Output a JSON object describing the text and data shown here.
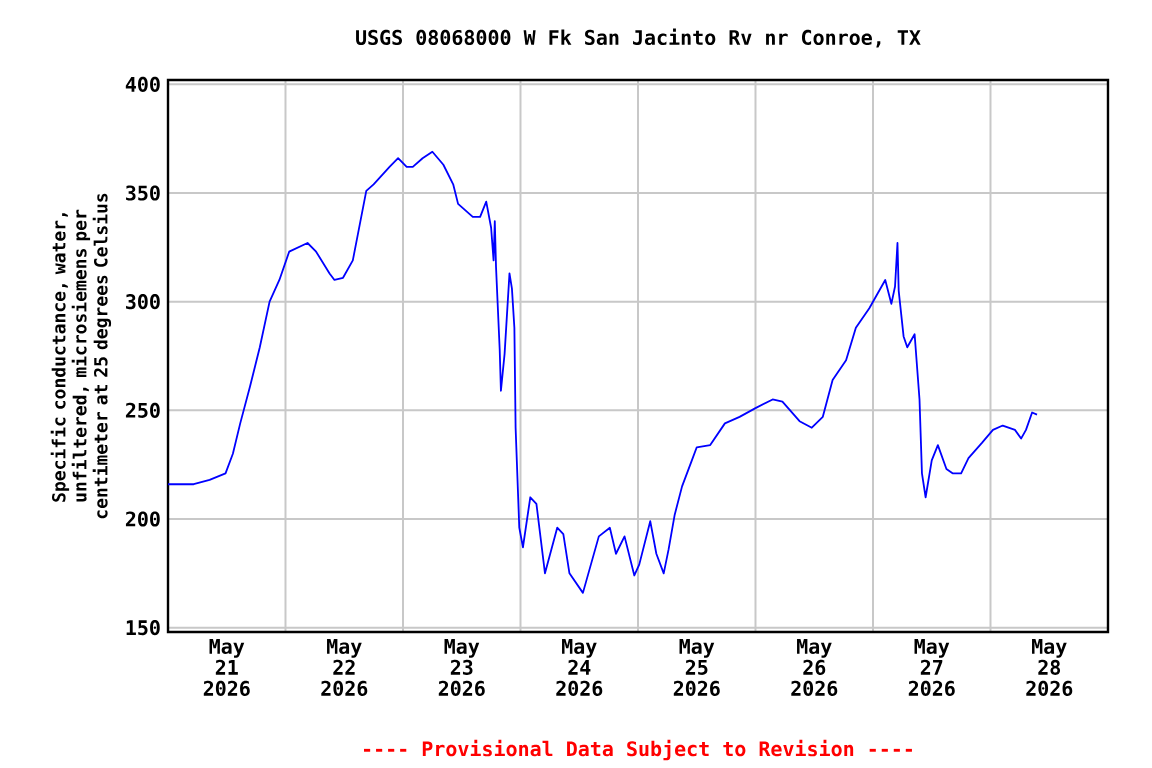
{
  "chart_data": {
    "type": "line",
    "title": "USGS 08068000 W Fk San Jacinto Rv nr Conroe, TX",
    "ylabel": "Specific conductance, water, unfiltered, microsiemens per centimeter at 25 degrees Celsius",
    "annotations": [
      "---- Provisional Data Subject to Revision ----"
    ],
    "color": "#0000ff",
    "line_style": "solid",
    "grid": true,
    "xlim": [
      "2026-05-21T00:00",
      "2026-05-29T00:00"
    ],
    "xticks": [
      {
        "value": "2026-05-21T12:00",
        "label": "May 21 2026"
      },
      {
        "value": "2026-05-22T12:00",
        "label": "May 22 2026"
      },
      {
        "value": "2026-05-23T12:00",
        "label": "May 23 2026"
      },
      {
        "value": "2026-05-24T12:00",
        "label": "May 24 2026"
      },
      {
        "value": "2026-05-25T12:00",
        "label": "May 25 2026"
      },
      {
        "value": "2026-05-26T12:00",
        "label": "May 26 2026"
      },
      {
        "value": "2026-05-27T12:00",
        "label": "May 27 2026"
      },
      {
        "value": "2026-05-28T12:00",
        "label": "May 28 2026"
      },
      {
        "value": "2026-05-22T00:00",
        "label": null
      },
      {
        "value": "2026-05-23T00:00",
        "label": null
      },
      {
        "value": "2026-05-24T00:00",
        "label": null
      },
      {
        "value": "2026-05-25T00:00",
        "label": null
      },
      {
        "value": "2026-05-26T00:00",
        "label": null
      },
      {
        "value": "2026-05-27T00:00",
        "label": null
      },
      {
        "value": "2026-05-28T00:00",
        "label": null
      }
    ],
    "ylim": [
      148,
      402
    ],
    "yticks": [
      150,
      200,
      250,
      300,
      350,
      400
    ],
    "x": [
      "2026-05-21T00:00",
      "2026-05-21T05:15",
      "2026-05-21T08:30",
      "2026-05-21T11:45",
      "2026-05-21T13:15",
      "2026-05-21T14:45",
      "2026-05-21T16:45",
      "2026-05-21T18:45",
      "2026-05-21T20:45",
      "2026-05-21T22:45",
      "2026-05-22T00:45",
      "2026-05-22T04:30",
      "2026-05-22T06:15",
      "2026-05-22T09:00",
      "2026-05-22T10:00",
      "2026-05-22T11:45",
      "2026-05-22T13:45",
      "2026-05-22T16:30",
      "2026-05-22T18:00",
      "2026-05-22T21:15",
      "2026-05-22T23:00",
      "2026-05-23T00:45",
      "2026-05-23T02:00",
      "2026-05-23T04:00",
      "2026-05-23T06:00",
      "2026-05-23T08:15",
      "2026-05-23T10:15",
      "2026-05-23T11:15",
      "2026-05-23T14:15",
      "2026-05-23T15:45",
      "2026-05-23T17:00",
      "2026-05-23T18:00",
      "2026-05-23T18:30",
      "2026-05-23T18:45",
      "2026-05-23T19:00",
      "2026-05-23T19:45",
      "2026-05-23T20:00",
      "2026-05-23T20:45",
      "2026-05-23T21:45",
      "2026-05-23T22:15",
      "2026-05-23T22:45",
      "2026-05-23T23:00",
      "2026-05-23T23:45",
      "2026-05-24T00:30",
      "2026-05-24T02:00",
      "2026-05-24T03:15",
      "2026-05-24T05:00",
      "2026-05-24T07:30",
      "2026-05-24T08:45",
      "2026-05-24T10:00",
      "2026-05-24T12:45",
      "2026-05-24T16:00",
      "2026-05-24T18:15",
      "2026-05-24T19:30",
      "2026-05-24T21:15",
      "2026-05-24T23:15",
      "2026-05-25T00:15",
      "2026-05-25T02:30",
      "2026-05-25T03:45",
      "2026-05-25T05:15",
      "2026-05-25T06:15",
      "2026-05-25T07:30",
      "2026-05-25T09:00",
      "2026-05-25T11:00",
      "2026-05-25T12:00",
      "2026-05-25T14:45",
      "2026-05-25T17:45",
      "2026-05-25T20:45",
      "2026-05-26T00:00",
      "2026-05-26T03:30",
      "2026-05-26T05:30",
      "2026-05-26T09:00",
      "2026-05-26T11:30",
      "2026-05-26T13:45",
      "2026-05-26T15:45",
      "2026-05-26T18:30",
      "2026-05-26T20:30",
      "2026-05-26T23:15",
      "2026-05-27T02:30",
      "2026-05-27T03:45",
      "2026-05-27T04:30",
      "2026-05-27T05:00",
      "2026-05-27T05:15",
      "2026-05-27T06:15",
      "2026-05-27T07:00",
      "2026-05-27T08:30",
      "2026-05-27T09:30",
      "2026-05-27T10:00",
      "2026-05-27T10:45",
      "2026-05-27T12:00",
      "2026-05-27T13:15",
      "2026-05-27T15:00",
      "2026-05-27T16:15",
      "2026-05-27T18:00",
      "2026-05-27T19:30",
      "2026-05-27T22:15",
      "2026-05-28T00:30",
      "2026-05-28T02:30",
      "2026-05-28T05:00",
      "2026-05-28T06:15",
      "2026-05-28T07:15",
      "2026-05-28T08:30",
      "2026-05-28T09:30"
    ],
    "values": [
      216,
      216,
      218,
      221,
      230,
      244,
      261,
      279,
      300,
      310,
      323,
      327,
      323,
      313,
      310,
      311,
      319,
      351,
      354,
      362,
      366,
      362,
      362,
      366,
      369,
      363,
      354,
      345,
      339,
      339,
      346,
      334,
      319,
      337,
      316,
      278,
      259,
      276,
      313,
      306,
      288,
      242,
      196,
      187,
      210,
      207,
      175,
      196,
      193,
      175,
      166,
      192,
      196,
      184,
      192,
      174,
      179,
      199,
      184,
      175,
      186,
      202,
      215,
      227,
      233,
      234,
      244,
      247,
      251,
      255,
      254,
      245,
      242,
      247,
      264,
      273,
      288,
      297,
      310,
      299,
      307,
      327,
      305,
      284,
      279,
      285,
      255,
      221,
      210,
      227,
      234,
      223,
      221,
      221,
      228,
      235,
      241,
      243,
      241,
      237,
      241,
      249,
      248
    ]
  }
}
